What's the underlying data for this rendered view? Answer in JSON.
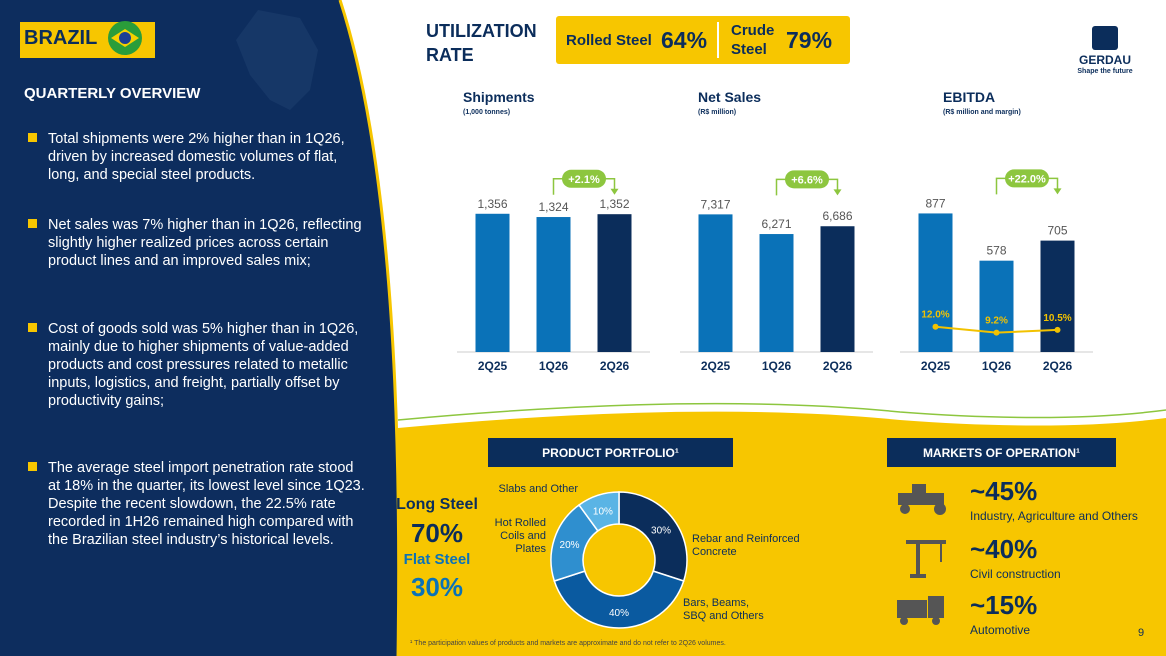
{
  "header": {
    "country": "BRAZIL",
    "section": "QUARTERLY OVERVIEW"
  },
  "overview": {
    "bullets": [
      "Total shipments were 2% higher than in 1Q26, driven by increased domestic volumes of flat, long, and special steel products.",
      "Net sales was 7% higher than in 1Q26, reflecting slightly higher realized prices across certain product lines and an improved sales mix;",
      "Cost of goods sold was 5% higher than in 1Q26, mainly due to higher shipments of value-added products and cost pressures related to metallic inputs, logistics, and freight, partially offset by productivity gains;",
      "The average steel import penetration rate stood at 18% in the quarter, its lowest level since 1Q23. Despite the recent slowdown, the 22.5% rate recorded in 1H26 remained high compared with the Brazilian steel industry’s historical levels."
    ]
  },
  "utilization": {
    "title": "UTILIZATION RATE",
    "items": [
      {
        "label": "Rolled Steel",
        "value": "64%"
      },
      {
        "label": "Crude Steel",
        "value": "79%"
      }
    ]
  },
  "logo": {
    "name": "GERDAU",
    "tagline": "Shape the future"
  },
  "chart_data": [
    {
      "type": "bar",
      "title": "Shipments",
      "subtitle": "(1,000 tonnes)",
      "categories": [
        "2Q25",
        "1Q26",
        "2Q26"
      ],
      "values": [
        1356,
        1324,
        1352
      ],
      "value_labels": [
        "1,356",
        "1,324",
        "1,352"
      ],
      "colors": [
        "#0a72b8",
        "#0a72b8",
        "#0b2d5b"
      ],
      "ylim": [
        0,
        1550
      ],
      "annotation": "+2.1%"
    },
    {
      "type": "bar",
      "title": "Net Sales",
      "subtitle": "(R$ million)",
      "categories": [
        "2Q25",
        "1Q26",
        "2Q26"
      ],
      "values": [
        7317,
        6271,
        6686
      ],
      "value_labels": [
        "7,317",
        "6,271",
        "6,686"
      ],
      "colors": [
        "#0a72b8",
        "#0a72b8",
        "#0b2d5b"
      ],
      "ylim": [
        0,
        8400
      ],
      "annotation": "+6.6%"
    },
    {
      "type": "bar",
      "title": "EBITDA",
      "subtitle": "(R$ million and margin)",
      "categories": [
        "2Q25",
        "1Q26",
        "2Q26"
      ],
      "values": [
        877,
        578,
        705
      ],
      "value_labels": [
        "877",
        "578",
        "705"
      ],
      "colors": [
        "#0a72b8",
        "#0a72b8",
        "#0b2d5b"
      ],
      "ylim": [
        0,
        1000
      ],
      "annotation": "+22.0%",
      "line_values": [
        12.0,
        9.2,
        10.5
      ],
      "line_value_labels": [
        "12.0%",
        "9.2%",
        "10.5%"
      ],
      "line_color": "#f2c200",
      "y2lim": [
        0,
        75
      ]
    },
    {
      "type": "pie",
      "title": "PRODUCT PORTFOLIO¹",
      "categories": [
        "Rebar and Reinforced Concrete",
        "Bars, Beams, SBQ and Others",
        "Hot Rolled Coils and Plates",
        "Slabs and Other"
      ],
      "values": [
        30,
        40,
        20,
        10
      ],
      "value_labels": [
        "30%",
        "40%",
        "20%",
        "10%"
      ],
      "colors": [
        "#0b2d5b",
        "#0a5aa0",
        "#2f8fcf",
        "#5ab4e5"
      ]
    }
  ],
  "product_mix": {
    "items": [
      {
        "label": "Long Steel",
        "value": "70%"
      },
      {
        "label": "Flat Steel",
        "value": "30%"
      }
    ]
  },
  "markets": {
    "title": "MARKETS OF OPERATION¹",
    "items": [
      {
        "value": "~45%",
        "label": "Industry, Agriculture and Others"
      },
      {
        "value": "~40%",
        "label": "Civil construction"
      },
      {
        "value": "~15%",
        "label": "Automotive"
      }
    ]
  },
  "footnote": "¹ The participation values of products and markets are approximate and do not refer to 2Q26 volumes.",
  "page_number": "9"
}
